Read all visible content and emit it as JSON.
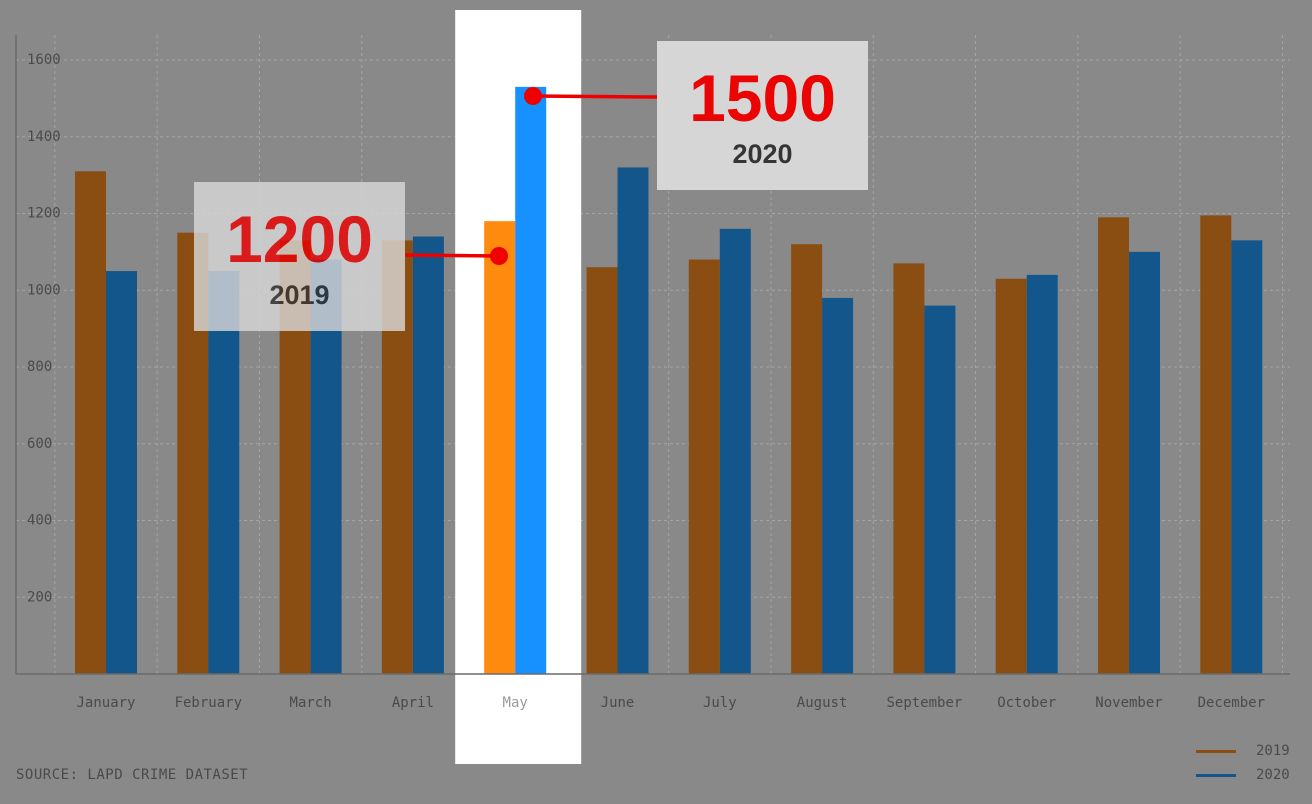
{
  "chart_data": {
    "type": "bar",
    "categories": [
      "January",
      "February",
      "March",
      "April",
      "May",
      "June",
      "July",
      "August",
      "September",
      "October",
      "November",
      "December"
    ],
    "series": [
      {
        "name": "2019",
        "values": [
          1310,
          1150,
          1130,
          1130,
          1180,
          1060,
          1080,
          1120,
          1070,
          1030,
          1190,
          1195
        ]
      },
      {
        "name": "2020",
        "values": [
          1050,
          1050,
          1080,
          1140,
          1530,
          1320,
          1160,
          980,
          960,
          1040,
          1100,
          1130
        ]
      }
    ],
    "ylim": [
      0,
      1600
    ],
    "yticks": [
      200,
      400,
      600,
      800,
      1000,
      1200,
      1400,
      1600
    ],
    "highlight_category": "May",
    "grid": true,
    "legend_position": "bottom-right",
    "colors": {
      "2019": "#8a4e12",
      "2020": "#13568c",
      "2019_highlight": "#ff8a0d",
      "2020_highlight": "#1691ff",
      "background": "#898989",
      "callout_text": "#ee0000"
    }
  },
  "callouts": {
    "c2020": {
      "value": "1500",
      "year": "2020"
    },
    "c2019": {
      "value": "1200",
      "year": "2019"
    }
  },
  "source": "SOURCE: LAPD CRIME DATASET",
  "legend": [
    {
      "label": "2019",
      "color": "#8a4e12"
    },
    {
      "label": "2020",
      "color": "#13568c"
    }
  ]
}
